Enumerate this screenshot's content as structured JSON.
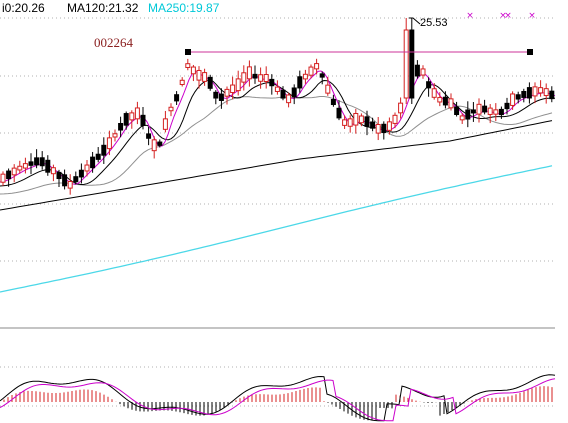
{
  "legend": [
    {
      "text": "i0:20.26",
      "color": "#000000"
    },
    {
      "text": "MA120:21.32",
      "color": "#000000"
    },
    {
      "text": "MA250:19.87",
      "color": "#00c8d8"
    }
  ],
  "stock_code": "002264",
  "peak_label": "25.53",
  "colors": {
    "up": "#d42020",
    "down": "#000000",
    "ma5": "#cc00cc",
    "ma10": "#000000",
    "ma20": "#909090",
    "ma120": "#000000",
    "ma250": "#4cd8e8",
    "resistance": "#cc3399",
    "grid": "#b0b0b0",
    "markers": "#cc00cc"
  },
  "chart_data": {
    "type": "candlestick",
    "panels": [
      "price",
      "macd"
    ],
    "peak_high": 25.53,
    "ma_last": {
      "ma120": 21.32,
      "ma250": 19.87
    },
    "top_markers": 4
  }
}
